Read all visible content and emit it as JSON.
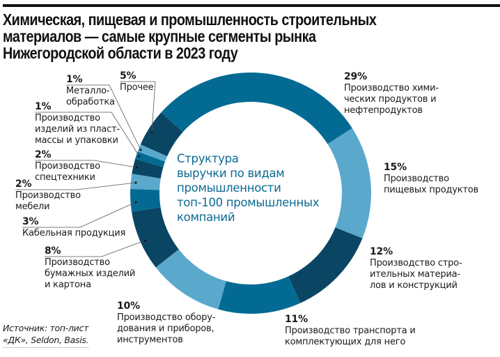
{
  "title_lines": [
    "Химическая, пищевая и промышленность строительных",
    "материалов — самые крупные сегменты рынка",
    "Нижегородской области в 2023 году"
  ],
  "center_label": "Структура\nвыручки по видам\nпромышленности\nтоп-100 промышленных\nкомпаний",
  "source": "Источник: топ-лист\n«ДК», Seldon, Basis.",
  "colors": {
    "mid": "#036b93",
    "light": "#5aa9cd",
    "dark": "#0a4564",
    "center_text": "#0b6a93"
  },
  "labels": [
    {
      "pct": "29%",
      "text": "Производство хими-\nческих продуктов и\nнефтепродуктов"
    },
    {
      "pct": "15%",
      "text": "Производство\nпищевых продуктов"
    },
    {
      "pct": "12%",
      "text": "Производство стро-\nительных материа-\nлов и конструкций"
    },
    {
      "pct": "11%",
      "text": "Производство транспорта и\nкомплектующих для него"
    },
    {
      "pct": "10%",
      "text": "Производство обору-\nдования и приборов,\nинструментов"
    },
    {
      "pct": "8%",
      "text": "Производство\nбумажных изделий\nи картона"
    },
    {
      "pct": "3%",
      "text": "Кабельная продукция"
    },
    {
      "pct": "2%",
      "text": "Производство\nмебели"
    },
    {
      "pct": "2%",
      "text": "Производство\nспецтехники"
    },
    {
      "pct": "1%",
      "text": "Производство\nизделий из пласт-\nмассы и упаковки"
    },
    {
      "pct": "1%",
      "text": "Металло-\nобработка"
    },
    {
      "pct": "5%",
      "text": "Прочее"
    }
  ],
  "chart_data": {
    "type": "pie",
    "subtype": "donut",
    "title": "Химическая, пищевая и промышленность строительных материалов — самые крупные сегменты рынка Нижегородской области в 2023 году",
    "center_text": "Структура выручки по видам промышленности топ-100 промышленных компаний",
    "categories": [
      "Производство химических продуктов и нефтепродуктов",
      "Производство пищевых продуктов",
      "Производство строительных материалов и конструкций",
      "Производство транспорта и комплектующих для него",
      "Производство оборудования и приборов, инструментов",
      "Производство бумажных изделий и картона",
      "Кабельная продукция",
      "Производство мебели",
      "Производство спецтехники",
      "Производство изделий из пластмассы и упаковки",
      "Металлообработка",
      "Прочее"
    ],
    "values": [
      29,
      15,
      12,
      11,
      10,
      8,
      3,
      2,
      2,
      1,
      1,
      5
    ],
    "unit": "%",
    "slice_colors": [
      "#036b93",
      "#5aa9cd",
      "#0a4564",
      "#036b93",
      "#5aa9cd",
      "#0a4564",
      "#036b93",
      "#5aa9cd",
      "#0a4564",
      "#036b93",
      "#5aa9cd",
      "#0a4564"
    ],
    "start_angle_deg": -48,
    "direction": "clockwise",
    "source": "Источник: топ-лист «ДК», Seldon, Basis."
  }
}
